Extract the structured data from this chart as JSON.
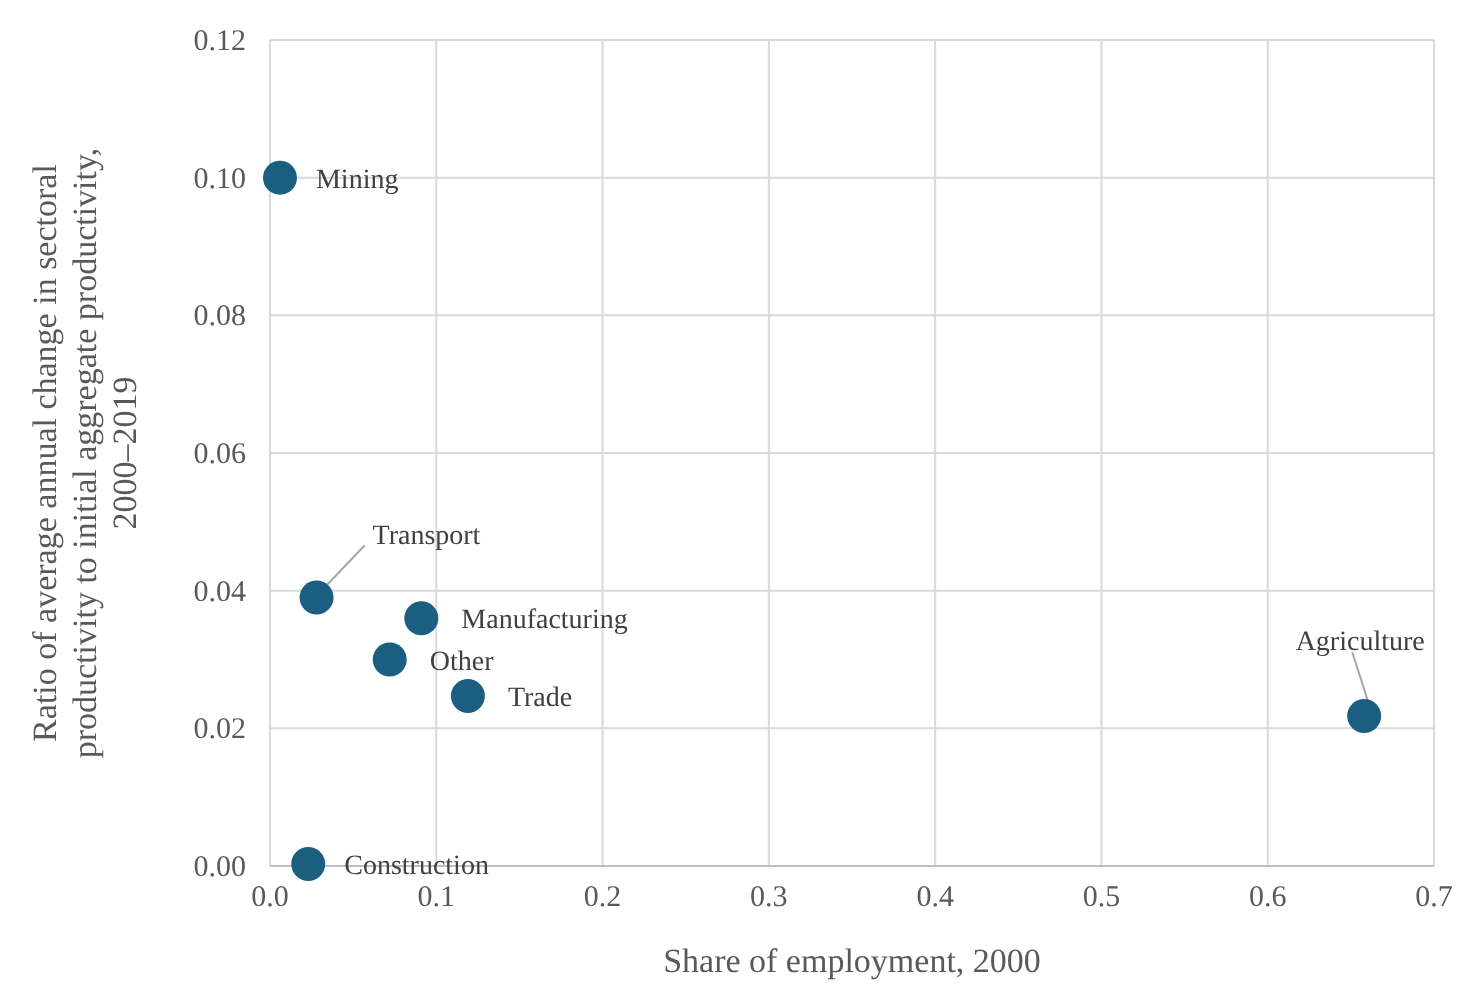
{
  "chart_data": {
    "type": "scatter",
    "xlabel": "Share of employment, 2000",
    "ylabel": "Ratio of average annual change in sectoral productivity to initial aggregate productivity, 2000–2019",
    "series": [
      {
        "color": "#1b5f80",
        "x": [
          0.006,
          0.028,
          0.091,
          0.072,
          0.119,
          0.658,
          0.023
        ],
        "values": [
          0.1,
          0.039,
          0.036,
          0.03,
          0.0247,
          0.0218,
          0.0003
        ]
      }
    ],
    "annotations": [
      {
        "text": "Mining",
        "x": 0.006,
        "y": 0.1
      },
      {
        "text": "Transport",
        "x": 0.028,
        "y": 0.039
      },
      {
        "text": "Manufacturing",
        "x": 0.091,
        "y": 0.036
      },
      {
        "text": "Other",
        "x": 0.072,
        "y": 0.03
      },
      {
        "text": "Trade",
        "x": 0.119,
        "y": 0.0247
      },
      {
        "text": "Agriculture",
        "x": 0.658,
        "y": 0.0218
      },
      {
        "text": "Construction",
        "x": 0.023,
        "y": 0.0003
      }
    ],
    "xlim": [
      0,
      0.7
    ],
    "xticks": [
      {
        "value": 0,
        "label": "0.0"
      },
      0.1,
      0.2,
      0.3,
      0.4,
      0.5,
      0.6,
      0.7
    ],
    "ylim": [
      0,
      0.12
    ],
    "yticks": [
      {
        "value": 0,
        "label": "0.00"
      },
      {
        "value": 0.02,
        "label": "0.02"
      },
      {
        "value": 0.04,
        "label": "0.04"
      },
      {
        "value": 0.06,
        "label": "0.06"
      },
      {
        "value": 0.08,
        "label": "0.08"
      },
      {
        "value": 0.1,
        "label": "0.10"
      },
      {
        "value": 0.12,
        "label": "0.12"
      }
    ],
    "grid": true,
    "marker": "circle"
  }
}
